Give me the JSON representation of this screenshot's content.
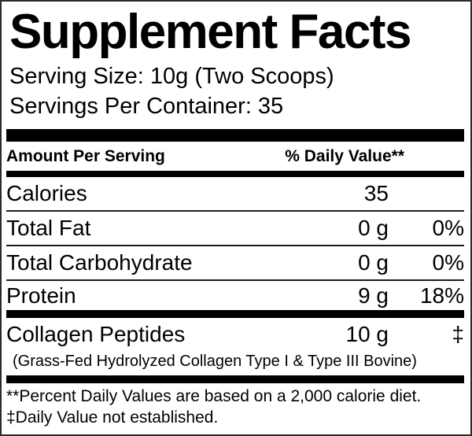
{
  "label": {
    "title": "Supplement Facts",
    "serving_size": "Serving Size: 10g (Two Scoops)",
    "servings_per_container": "Servings Per Container: 35",
    "table": {
      "header": {
        "amount_per_serving": "Amount Per Serving",
        "daily_value": "% Daily Value**"
      },
      "rows": [
        {
          "name": "Calories",
          "amount": "35",
          "dv": ""
        },
        {
          "name": "Total Fat",
          "amount": "0 g",
          "dv": "0%"
        },
        {
          "name": "Total Carbohydrate",
          "amount": "0 g",
          "dv": "0%"
        },
        {
          "name": "Protein",
          "amount": "9 g",
          "dv": "18%"
        }
      ],
      "collagen_row": {
        "name": "Collagen Peptides",
        "amount": "10 g",
        "dv": "‡"
      },
      "collagen_subtext": "(Grass-Fed Hydrolyzed Collagen Type I & Type III Bovine)"
    },
    "footnotes": [
      "**Percent Daily Values are based on a 2,000 calorie diet.",
      "‡Daily Value not established."
    ],
    "colors": {
      "text": "#000000",
      "background": "#ffffff",
      "rule": "#000000"
    }
  }
}
